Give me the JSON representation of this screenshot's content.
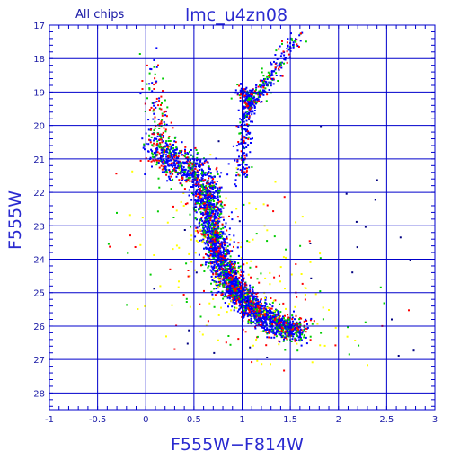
{
  "chart_data": {
    "type": "scatter",
    "title": "lmc_u4zn08",
    "subtitle": "All chips",
    "xlabel": "F555W−F814W",
    "ylabel": "F555W",
    "xlim": [
      -1,
      3
    ],
    "ylim": [
      28.5,
      17
    ],
    "y_inverted": true,
    "grid": true,
    "x_major_ticks": [
      -1,
      -0.5,
      0,
      0.5,
      1,
      1.5,
      2,
      2.5,
      3
    ],
    "x_tick_labels": [
      "-1",
      "-0.5",
      "0",
      "0.5",
      "1",
      "1.5",
      "2",
      "2.5",
      "3"
    ],
    "y_major_ticks": [
      17,
      18,
      19,
      20,
      21,
      22,
      23,
      24,
      25,
      26,
      27,
      28
    ],
    "y_tick_labels": [
      "17",
      "18",
      "19",
      "20",
      "21",
      "22",
      "23",
      "24",
      "25",
      "26",
      "27",
      "28"
    ],
    "series_colors": {
      "blue": "#0000ff",
      "green": "#00cc00",
      "red": "#ff0000",
      "yellow": "#ffff00",
      "black": "#000080"
    },
    "features": {
      "main_sequence": [
        [
          0.62,
          21.8
        ],
        [
          0.66,
          22.5
        ],
        [
          0.7,
          23.2
        ],
        [
          0.75,
          23.8
        ],
        [
          0.82,
          24.4
        ],
        [
          0.92,
          24.9
        ],
        [
          1.05,
          25.3
        ],
        [
          1.2,
          25.7
        ],
        [
          1.4,
          26.0
        ],
        [
          1.6,
          26.15
        ]
      ],
      "red_giant_branch": [
        [
          1.0,
          21.5
        ],
        [
          1.0,
          20.8
        ],
        [
          1.02,
          20.2
        ],
        [
          1.05,
          19.6
        ],
        [
          1.12,
          19.2
        ],
        [
          1.22,
          18.9
        ],
        [
          1.32,
          18.4
        ],
        [
          1.45,
          17.8
        ],
        [
          1.6,
          17.3
        ]
      ],
      "upper_main_sequence_turnoff": [
        [
          0.1,
          20.6
        ],
        [
          0.25,
          21.0
        ],
        [
          0.45,
          21.3
        ],
        [
          0.6,
          21.6
        ]
      ],
      "blue_plume": [
        [
          0.05,
          18.2
        ],
        [
          0.1,
          19.2
        ],
        [
          0.15,
          20.0
        ],
        [
          0.2,
          20.6
        ]
      ],
      "red_clump": [
        [
          1.0,
          19.0
        ],
        [
          1.1,
          19.2
        ],
        [
          1.05,
          19.4
        ]
      ]
    }
  }
}
